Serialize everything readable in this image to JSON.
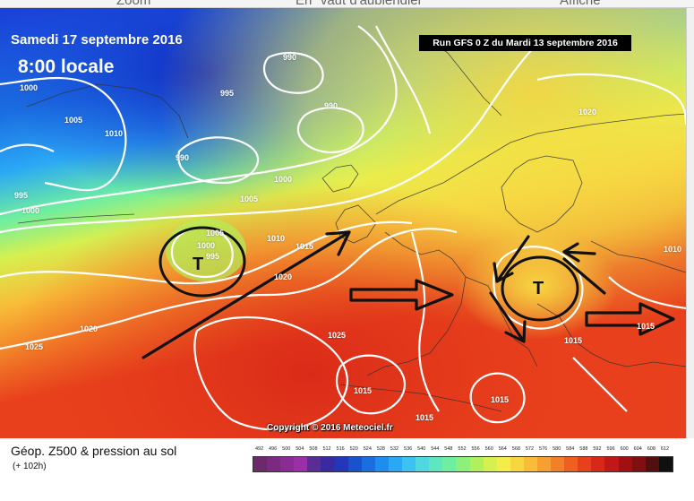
{
  "browser_bar": {
    "left_text": "Zoom",
    "middle_text": "En \"vaut d'aubiendier\"",
    "right_text": "Affiche"
  },
  "map": {
    "date_title": "Samedi 17 septembre 2016",
    "time_title": "8:00 locale",
    "run_label": "Run GFS 0 Z du Mardi 13 septembre 2016",
    "copyright": "Copyright © 2016 Meteociel.fr",
    "low_symbols": [
      "T",
      "T"
    ],
    "isobar_labels": [
      {
        "text": "1000"
      },
      {
        "text": "1005"
      },
      {
        "text": "1010"
      },
      {
        "text": "995"
      },
      {
        "text": "1000"
      },
      {
        "text": "990"
      },
      {
        "text": "995"
      },
      {
        "text": "990"
      },
      {
        "text": "990"
      },
      {
        "text": "1000"
      },
      {
        "text": "1005"
      },
      {
        "text": "1005"
      },
      {
        "text": "1000"
      },
      {
        "text": "995"
      },
      {
        "text": "1010"
      },
      {
        "text": "1015"
      },
      {
        "text": "1020"
      },
      {
        "text": "1025"
      },
      {
        "text": "1020"
      },
      {
        "text": "1025"
      },
      {
        "text": "1015"
      },
      {
        "text": "1015"
      },
      {
        "text": "1015"
      },
      {
        "text": "1015"
      },
      {
        "text": "1020"
      },
      {
        "text": "1010"
      },
      {
        "text": "1015"
      }
    ],
    "arrows": [
      "southwest-to-northeast-flow-arrow",
      "eastward-arrow-france",
      "eastward-arrow-east-europe",
      "cyclonic-arrows-central-europe"
    ]
  },
  "legend": {
    "title": "Géop. Z500 & pression au sol",
    "forecast_hour": "(+ 102h)",
    "scale_values": [
      "492",
      "496",
      "500",
      "504",
      "508",
      "512",
      "516",
      "520",
      "524",
      "528",
      "532",
      "536",
      "540",
      "544",
      "548",
      "552",
      "556",
      "560",
      "564",
      "568",
      "572",
      "576",
      "580",
      "584",
      "588",
      "592",
      "596",
      "600",
      "604",
      "608",
      "612"
    ],
    "scale_colors": [
      "#6b2b6b",
      "#7a2a7f",
      "#8a2c93",
      "#9a2fa6",
      "#5a2d96",
      "#3a2aa0",
      "#2238b8",
      "#1a52cc",
      "#1a6ee0",
      "#1f8cf0",
      "#2aa8f5",
      "#3cc2f0",
      "#4fd8e0",
      "#5ee6c0",
      "#6eeea0",
      "#8cf07a",
      "#b0f05a",
      "#d6f050",
      "#f5ec4a",
      "#f8d640",
      "#f8bc38",
      "#f5a030",
      "#f28028",
      "#ef6020",
      "#e8401c",
      "#d82818",
      "#c01818",
      "#a01010",
      "#801010",
      "#501010",
      "#101010"
    ]
  }
}
